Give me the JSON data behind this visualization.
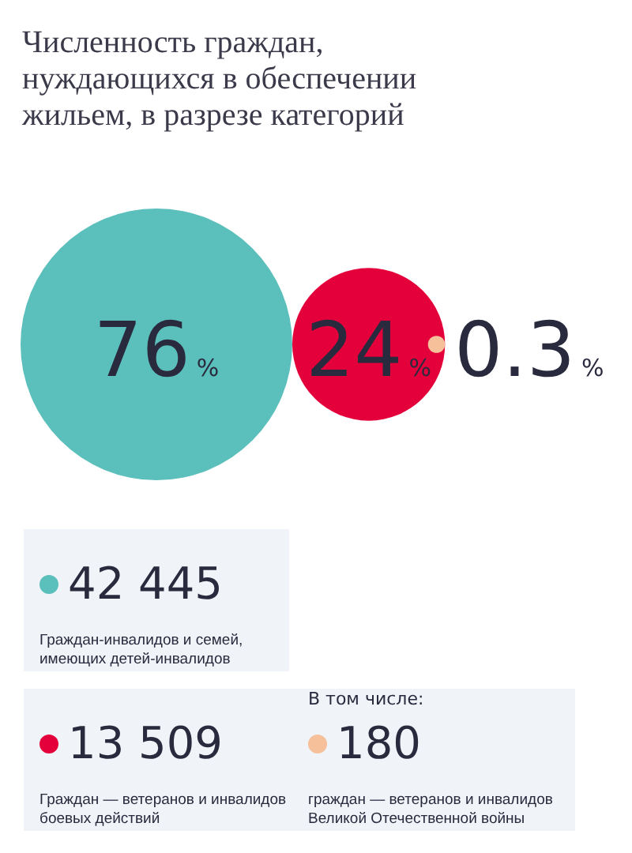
{
  "chart_data": [
    {
      "type": "other",
      "title": "Численность граждан, нуждающихся в обеспечении жильем, в разрезе категорий",
      "categories": [
        null,
        null,
        null
      ],
      "values": [
        76,
        24,
        0.3
      ],
      "colors": [
        "#5bbfbc",
        "#e4003b",
        "#f5c09a"
      ],
      "value_labels": [
        "76%",
        "24%",
        "0.3%"
      ]
    },
    {
      "type": "other",
      "categories": [
        "Граждан-инвалидов и семей, имеющих детей-инвалидов",
        "Граждан — ветеранов и инвалидов боевых действий",
        "граждан — ветеранов и инвалидов Великой Отечественной войны"
      ],
      "value_labels": [
        "42 445",
        "13 509",
        "180"
      ],
      "annotations": [
        "В том числе:"
      ]
    }
  ]
}
